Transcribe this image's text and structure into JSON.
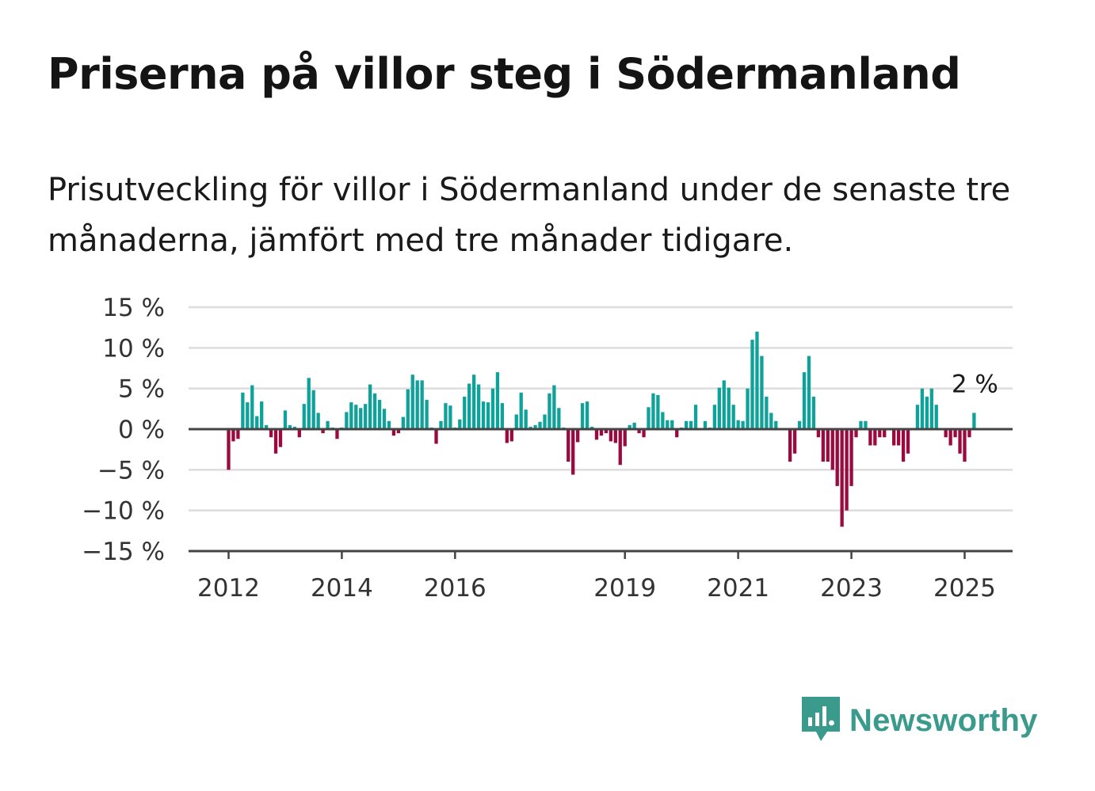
{
  "title": "Priserna på villor steg i Södermanland",
  "subtitle": "Prisutveckling för villor i Södermanland under de senaste tre månaderna, jämfört med tre månader tidigare.",
  "brand": "Newsworthy",
  "colors": {
    "positive": "#0ea29a",
    "negative": "#9b0a3f",
    "grid": "#dddddd",
    "axis": "#444444",
    "brand": "#3a9a8c"
  },
  "chart_data": {
    "type": "bar",
    "x_unit": "month",
    "start": "2012-01",
    "end": "2025-03",
    "ylim": [
      -15,
      15
    ],
    "y_ticks": [
      15,
      10,
      5,
      0,
      -5,
      -10,
      -15
    ],
    "y_tick_labels": [
      "15 %",
      "10 %",
      "5 %",
      "0 %",
      "−5 %",
      "−10 %",
      "−15 %"
    ],
    "x_ticks": [
      {
        "label": "2012",
        "date": "2012-01"
      },
      {
        "label": "2014",
        "date": "2014-01"
      },
      {
        "label": "2016",
        "date": "2016-01"
      },
      {
        "label": "2019",
        "date": "2019-01"
      },
      {
        "label": "2021",
        "date": "2021-01"
      },
      {
        "label": "2023",
        "date": "2023-01"
      },
      {
        "label": "2025",
        "date": "2025-01"
      }
    ],
    "annotation": {
      "text": "2 %",
      "date": "2025-03",
      "value": 2
    },
    "grid": true,
    "legend": "none",
    "values": [
      -5.0,
      -1.5,
      -1.2,
      4.5,
      3.3,
      5.4,
      1.6,
      3.4,
      0.5,
      -1.0,
      -3.0,
      -2.2,
      2.3,
      0.5,
      0.3,
      -1.0,
      3.1,
      6.3,
      4.8,
      2.0,
      -0.5,
      1.0,
      0.2,
      -1.2,
      0.2,
      2.1,
      3.3,
      3.0,
      2.6,
      3.1,
      5.5,
      4.4,
      3.6,
      2.5,
      1.0,
      -0.8,
      -0.5,
      1.5,
      4.9,
      6.7,
      6.0,
      6.0,
      3.6,
      0.2,
      -1.8,
      1.0,
      3.2,
      2.9,
      0.2,
      1.2,
      4.0,
      5.6,
      6.7,
      5.5,
      3.4,
      3.3,
      5.0,
      7.0,
      3.2,
      -1.7,
      -1.5,
      1.8,
      4.5,
      2.4,
      0.3,
      0.5,
      0.9,
      1.8,
      4.4,
      5.4,
      2.6,
      0.2,
      -4.0,
      -5.6,
      -1.6,
      3.2,
      3.4,
      0.3,
      -1.3,
      -0.8,
      -0.5,
      -1.5,
      -1.7,
      -4.4,
      -2.1,
      0.5,
      0.8,
      -0.5,
      -1.0,
      2.7,
      4.4,
      4.2,
      2.1,
      1.1,
      1.1,
      -1.0,
      0.2,
      1.0,
      1.0,
      3.0,
      0.1,
      1.0,
      0.2,
      3.0,
      5.1,
      6.0,
      5.1,
      3.0,
      1.1,
      1.0,
      5.0,
      11.0,
      12.0,
      9.0,
      4.0,
      2.0,
      1.0,
      0.1,
      0.1,
      -4.0,
      -3.0,
      1.0,
      7.0,
      9.0,
      4.0,
      -1.0,
      -4.0,
      -4.0,
      -5.0,
      -7.0,
      -12.0,
      -10.0,
      -7.0,
      -1.0,
      1.0,
      1.0,
      -2.0,
      -2.0,
      -1.0,
      -1.0,
      -0.1,
      -2.0,
      -2.0,
      -4.0,
      -3.0,
      0.1,
      3.0,
      5.0,
      4.0,
      5.0,
      3.0,
      0.1,
      -1.0,
      -2.0,
      -1.0,
      -3.0,
      -4.0,
      -1.0,
      2.0
    ]
  }
}
